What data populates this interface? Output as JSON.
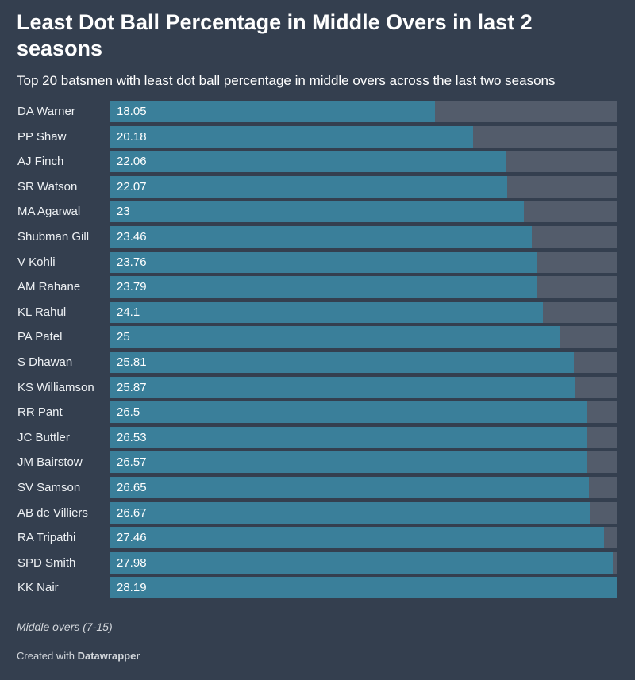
{
  "title": "Least Dot Ball Percentage in Middle Overs in last 2 seasons",
  "subtitle": "Top 20 batsmen with least dot ball percentage in middle overs across the last two seasons",
  "note": "Middle overs (7-15)",
  "credit": {
    "prefix": "Created with",
    "brand": "Datawrapper"
  },
  "colors": {
    "background": "#343f4f",
    "bar": "#3a7f9a",
    "track": "#535c6b"
  },
  "chart_data": {
    "type": "bar",
    "orientation": "horizontal",
    "title": "Least Dot Ball Percentage in Middle Overs in last 2 seasons",
    "subtitle": "Top 20 batsmen with least dot ball percentage in middle overs across the last two seasons",
    "xlim": [
      0,
      28.19
    ],
    "grid": false,
    "legend": "none",
    "categories": [
      "DA Warner",
      "PP Shaw",
      "AJ Finch",
      "SR Watson",
      "MA Agarwal",
      "Shubman Gill",
      "V Kohli",
      "AM Rahane",
      "KL Rahul",
      "PA Patel",
      "S Dhawan",
      "KS Williamson",
      "RR Pant",
      "JC Buttler",
      "JM Bairstow",
      "SV Samson",
      "AB de Villiers",
      "RA Tripathi",
      "SPD Smith",
      "KK Nair"
    ],
    "values": [
      18.05,
      20.18,
      22.06,
      22.07,
      23,
      23.46,
      23.76,
      23.79,
      24.1,
      25,
      25.81,
      25.87,
      26.5,
      26.53,
      26.57,
      26.65,
      26.67,
      27.46,
      27.98,
      28.19
    ],
    "value_labels": [
      "18.05",
      "20.18",
      "22.06",
      "22.07",
      "23",
      "23.46",
      "23.76",
      "23.79",
      "24.1",
      "25",
      "25.81",
      "25.87",
      "26.5",
      "26.53",
      "26.57",
      "26.65",
      "26.67",
      "27.46",
      "27.98",
      "28.19"
    ]
  }
}
